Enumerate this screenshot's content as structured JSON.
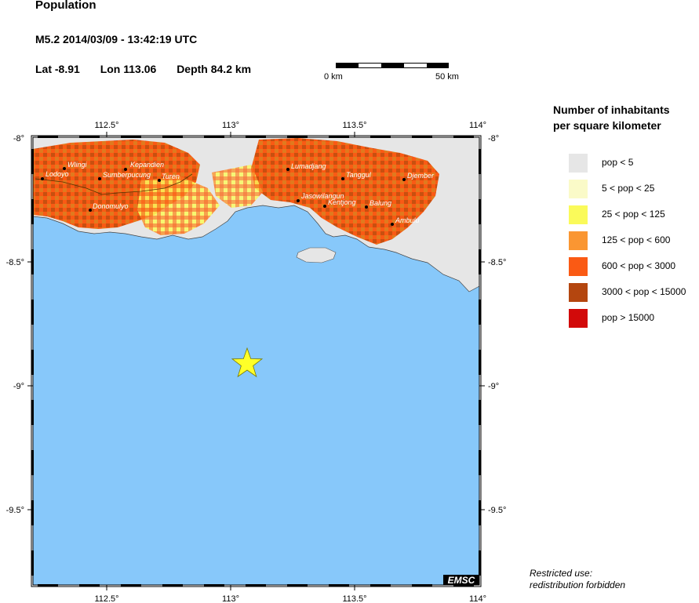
{
  "header": {
    "title": "Population",
    "event_line": "M5.2  2014/03/09 - 13:42:19 UTC",
    "lat": "Lat -8.91",
    "lon": "Lon 113.06",
    "depth": "Depth  84.2 km"
  },
  "scale": {
    "start_label": "0 km",
    "end_label": "50 km"
  },
  "axes": {
    "top_lon": [
      "112.5°",
      "113°",
      "113.5°",
      "114°"
    ],
    "bottom_lon": [
      "112.5°",
      "113°",
      "113.5°",
      "114°"
    ],
    "left_lat": [
      "-8°",
      "-8.5°",
      "-9°",
      "-9.5°"
    ],
    "right_lat": [
      "-8°",
      "-8.5°",
      "-9°",
      "-9.5°"
    ]
  },
  "towns": [
    {
      "name": "Lodoyo"
    },
    {
      "name": "Wlingi"
    },
    {
      "name": "Kepandien"
    },
    {
      "name": "Sumberpucung"
    },
    {
      "name": "Turen"
    },
    {
      "name": "Donomulyo"
    },
    {
      "name": "Lumadjang"
    },
    {
      "name": "Tanggul"
    },
    {
      "name": "Djember"
    },
    {
      "name": "Jasowilangun"
    },
    {
      "name": "Kentjong"
    },
    {
      "name": "Balung"
    },
    {
      "name": "Ambulu"
    }
  ],
  "legend": {
    "title_line1": "Number of inhabitants",
    "title_line2": "per square kilometer",
    "items": [
      {
        "label": "pop < 5",
        "color": "#e6e6e6"
      },
      {
        "label": "5 < pop < 25",
        "color": "#fafac8"
      },
      {
        "label": "25 < pop < 125",
        "color": "#fafa5a"
      },
      {
        "label": "125 < pop < 600",
        "color": "#fa9632"
      },
      {
        "label": "600 < pop < 3000",
        "color": "#fa5a14"
      },
      {
        "label": "3000 < pop < 15000",
        "color": "#b4460f"
      },
      {
        "label": "pop > 15000",
        "color": "#d20a0a"
      }
    ]
  },
  "watermark": "EMSC",
  "footer": {
    "line1": "Restricted use:",
    "line2": "redistribution forbidden"
  },
  "colors": {
    "sea": "#87c8fa",
    "epicenter": "#ffff28"
  }
}
